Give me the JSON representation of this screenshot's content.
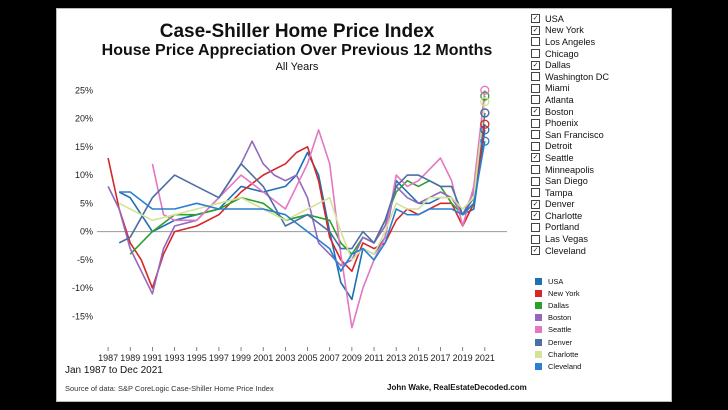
{
  "header": {
    "title": "Case-Shiller Home Price Index",
    "subtitle": "House Price Appreciation Over Previous 12 Months",
    "note": "All Years"
  },
  "footer": {
    "date_range": "Jan 1987 to Dec 2021",
    "source": "Source of data: S&P CoreLogic Case-Shiller Home Price Index",
    "credit": "John Wake, RealEstateDecoded.com"
  },
  "cities": [
    {
      "label": "USA",
      "checked": true
    },
    {
      "label": "New York",
      "checked": true
    },
    {
      "label": "Los Angeles",
      "checked": false
    },
    {
      "label": "Chicago",
      "checked": false
    },
    {
      "label": "Dallas",
      "checked": true
    },
    {
      "label": "Washington DC",
      "checked": false
    },
    {
      "label": "Miami",
      "checked": false
    },
    {
      "label": "Atlanta",
      "checked": false
    },
    {
      "label": "Boston",
      "checked": true
    },
    {
      "label": "Phoenix",
      "checked": false
    },
    {
      "label": "San Francisco",
      "checked": false
    },
    {
      "label": "Detroit",
      "checked": false
    },
    {
      "label": "Seattle",
      "checked": true
    },
    {
      "label": "Minneapolis",
      "checked": false
    },
    {
      "label": "San Diego",
      "checked": false
    },
    {
      "label": "Tampa",
      "checked": false
    },
    {
      "label": "Denver",
      "checked": true
    },
    {
      "label": "Charlotte",
      "checked": true
    },
    {
      "label": "Portland",
      "checked": false
    },
    {
      "label": "Las Vegas",
      "checked": false
    },
    {
      "label": "Cleveland",
      "checked": true
    }
  ],
  "chart_data": {
    "type": "line",
    "x_ticks": [
      "1987",
      "1989",
      "1991",
      "1993",
      "1995",
      "1997",
      "1999",
      "2001",
      "2003",
      "2005",
      "2007",
      "2009",
      "2011",
      "2013",
      "2015",
      "2017",
      "2019",
      "2021"
    ],
    "y_ticks": [
      "25%",
      "20%",
      "15%",
      "10%",
      "5%",
      "0%",
      "-5%",
      "-10%",
      "-15%"
    ],
    "xlim": [
      1986.0,
      2023.0
    ],
    "ylim": [
      -19,
      27
    ],
    "series": [
      {
        "name": "USA",
        "color": "#1f6fb5",
        "x": [
          1988,
          1989,
          1990,
          1991,
          1993,
          1995,
          1997,
          1999,
          2001,
          2003,
          2004,
          2005,
          2006,
          2007,
          2008,
          2009,
          2010,
          2011,
          2012,
          2013,
          2014,
          2015,
          2016,
          2017,
          2018,
          2019,
          2020,
          2021
        ],
        "y": [
          7,
          6,
          3,
          0,
          2,
          3,
          4,
          8,
          7,
          8,
          10,
          14,
          10,
          0,
          -9,
          -12,
          -3,
          -4,
          -1,
          9,
          7,
          5,
          5,
          6,
          6,
          3,
          4,
          18
        ]
      },
      {
        "name": "New York",
        "color": "#d62728",
        "x": [
          1987,
          1988,
          1989,
          1990,
          1991,
          1992,
          1993,
          1995,
          1997,
          1999,
          2001,
          2003,
          2004,
          2005,
          2006,
          2007,
          2008,
          2009,
          2010,
          2011,
          2012,
          2013,
          2014,
          2015,
          2016,
          2017,
          2018,
          2019,
          2020,
          2021
        ],
        "y": [
          13,
          4,
          -2,
          -5,
          -10,
          -4,
          0,
          1,
          3,
          7,
          10,
          12,
          14,
          15,
          9,
          -1,
          -5,
          -7,
          -2,
          -3,
          -2,
          2,
          4,
          3,
          4,
          5,
          5,
          1,
          5,
          19
        ]
      },
      {
        "name": "Dallas",
        "color": "#2ca02c",
        "x": [
          1989,
          1991,
          1993,
          1995,
          1997,
          1999,
          2001,
          2003,
          2005,
          2007,
          2008,
          2009,
          2010,
          2011,
          2012,
          2013,
          2014,
          2015,
          2016,
          2017,
          2018,
          2019,
          2020,
          2021
        ],
        "y": [
          -4,
          0,
          3,
          3,
          4,
          6,
          5,
          2,
          3,
          2,
          -2,
          -4,
          -1,
          -2,
          2,
          7,
          9,
          8,
          9,
          8,
          5,
          3,
          5,
          24
        ]
      },
      {
        "name": "Boston",
        "color": "#9467bd",
        "x": [
          1987,
          1988,
          1989,
          1990,
          1991,
          1992,
          1993,
          1995,
          1997,
          1999,
          2000,
          2001,
          2002,
          2003,
          2004,
          2005,
          2006,
          2007,
          2008,
          2009,
          2010,
          2011,
          2012,
          2013,
          2014,
          2015,
          2016,
          2017,
          2018,
          2019,
          2020,
          2021
        ],
        "y": [
          8,
          4,
          -3,
          -7,
          -11,
          -3,
          1,
          2,
          6,
          12,
          16,
          12,
          10,
          9,
          10,
          6,
          -2,
          -4,
          -6,
          -5,
          -1,
          -2,
          1,
          8,
          6,
          5,
          6,
          7,
          6,
          3,
          7,
          21
        ]
      },
      {
        "name": "Seattle",
        "color": "#e377c2",
        "x": [
          1991,
          1992,
          1993,
          1995,
          1997,
          1999,
          2001,
          2003,
          2005,
          2006,
          2007,
          2008,
          2009,
          2010,
          2011,
          2012,
          2013,
          2014,
          2015,
          2016,
          2017,
          2018,
          2019,
          2020,
          2021
        ],
        "y": [
          12,
          3,
          2,
          2,
          6,
          10,
          7,
          4,
          12,
          18,
          12,
          -4,
          -17,
          -10,
          -5,
          -1,
          10,
          8,
          9,
          11,
          13,
          9,
          1,
          8,
          25
        ]
      },
      {
        "name": "Denver",
        "color": "#4a6fa5",
        "x": [
          1988,
          1989,
          1991,
          1993,
          1995,
          1997,
          1999,
          2001,
          2003,
          2005,
          2007,
          2008,
          2009,
          2010,
          2011,
          2012,
          2013,
          2014,
          2015,
          2016,
          2017,
          2018,
          2019,
          2020,
          2021
        ],
        "y": [
          -2,
          -1,
          6,
          10,
          8,
          6,
          12,
          8,
          1,
          3,
          0,
          -3,
          -3,
          0,
          -2,
          2,
          8,
          10,
          10,
          9,
          8,
          8,
          3,
          6,
          21
        ]
      },
      {
        "name": "Charlotte",
        "color": "#d4e396",
        "x": [
          1988,
          1989,
          1991,
          1993,
          1995,
          1997,
          1999,
          2001,
          2003,
          2005,
          2007,
          2008,
          2009,
          2010,
          2011,
          2012,
          2013,
          2014,
          2015,
          2016,
          2017,
          2018,
          2019,
          2020,
          2021
        ],
        "y": [
          5,
          4,
          2,
          3,
          4,
          5,
          6,
          4,
          2,
          4,
          6,
          0,
          -5,
          -3,
          -4,
          0,
          5,
          4,
          4,
          6,
          6,
          6,
          4,
          6,
          23
        ]
      },
      {
        "name": "Cleveland",
        "color": "#2a7fd0",
        "x": [
          1988,
          1989,
          1991,
          1993,
          1995,
          1997,
          1999,
          2001,
          2003,
          2005,
          2007,
          2008,
          2009,
          2010,
          2011,
          2012,
          2013,
          2014,
          2015,
          2016,
          2017,
          2018,
          2019,
          2020,
          2021
        ],
        "y": [
          7,
          7,
          4,
          4,
          5,
          4,
          4,
          4,
          3,
          0,
          -3,
          -7,
          -4,
          -3,
          -5,
          -2,
          4,
          3,
          3,
          4,
          4,
          4,
          3,
          5,
          16
        ]
      }
    ]
  }
}
